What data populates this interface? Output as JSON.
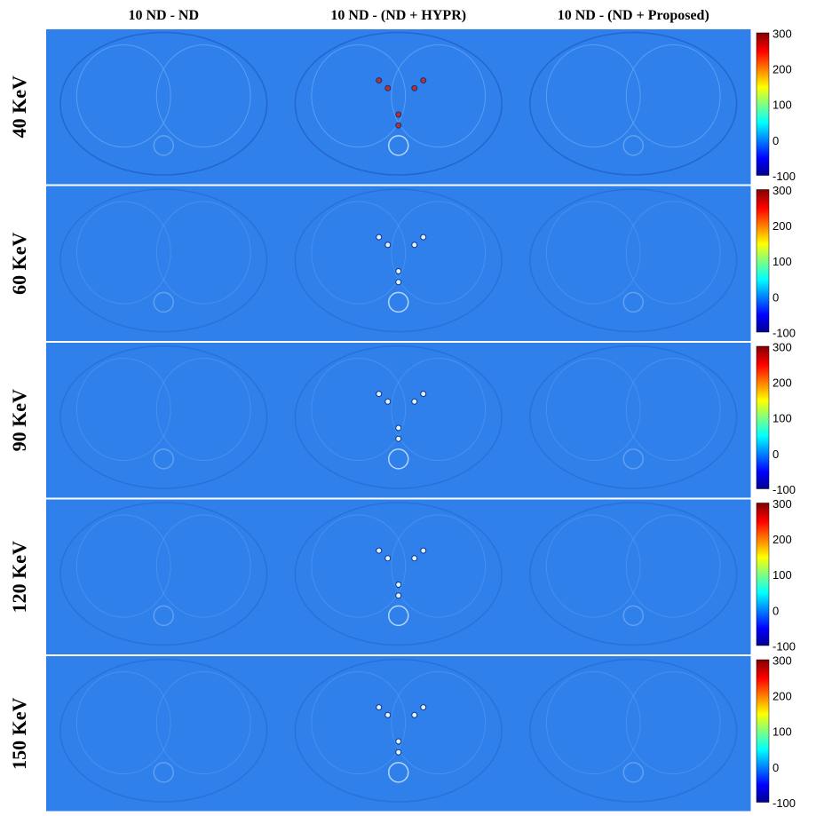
{
  "columns": [
    "10 ND - ND",
    "10 ND - (ND + HYPR)",
    "10 ND - (ND + Proposed)"
  ],
  "rows": [
    "40 KeV",
    "60 KeV",
    "90 KeV",
    "120 KeV",
    "150 KeV"
  ],
  "colorbar": {
    "range": [
      -100,
      300
    ],
    "ticks": [
      300,
      200,
      100,
      0,
      -100
    ]
  }
}
